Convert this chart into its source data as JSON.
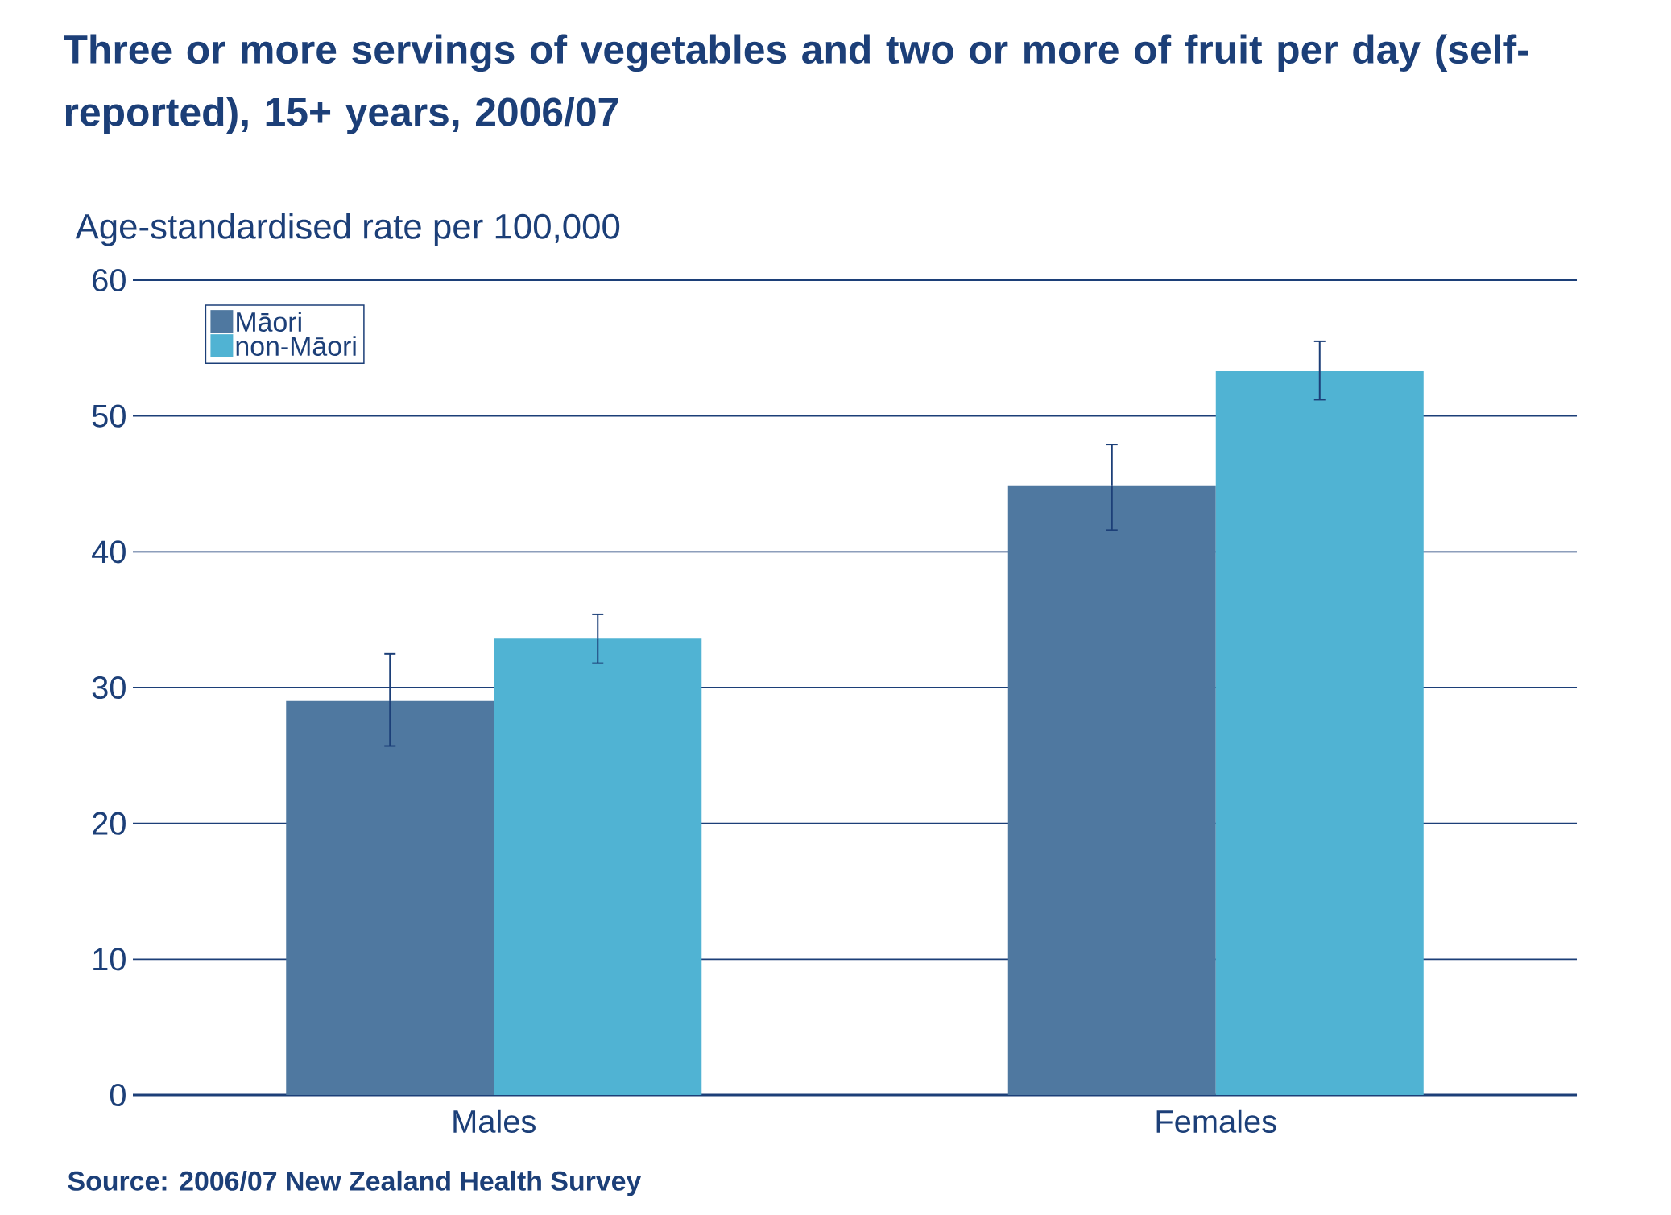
{
  "chart_data": {
    "type": "bar",
    "title": "Three or more servings of vegetables and two or more of fruit per day (self-reported), 15+ years, 2006/07",
    "ylabel": "Age-standardised rate per 100,000",
    "categories": [
      "Males",
      "Females"
    ],
    "series": [
      {
        "name": "Māori",
        "color": "#4f78a0",
        "values": [
          29.0,
          44.9
        ],
        "errors": [
          [
            25.7,
            32.5
          ],
          [
            41.6,
            47.9
          ]
        ]
      },
      {
        "name": "non-Māori",
        "color": "#50b3d3",
        "values": [
          33.6,
          53.3
        ],
        "errors": [
          [
            31.8,
            35.4
          ],
          [
            51.2,
            55.5
          ]
        ]
      }
    ],
    "ylim": [
      0,
      60
    ],
    "yticks": [
      0,
      10,
      20,
      30,
      40,
      50,
      60
    ],
    "grid": "y",
    "legend": "top left",
    "annotations": [
      "Source: 2006/07 New Zealand Health Survey"
    ]
  }
}
